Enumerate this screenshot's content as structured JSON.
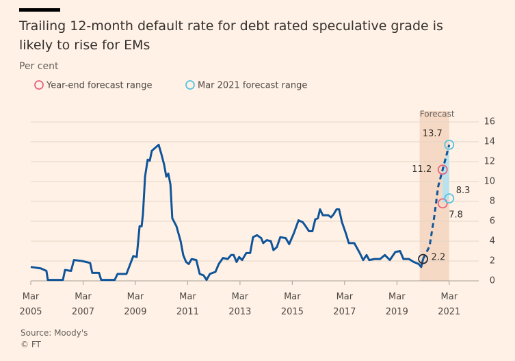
{
  "chart_data": {
    "type": "line",
    "title": "Trailing 12-month default rate for debt rated speculative grade is likely to rise for EMs",
    "subtitle": "Per cent",
    "source": "Source: Moody's",
    "copyright": "© FT",
    "color": "#0f5499",
    "x": [
      2005.17,
      2005.56,
      2005.77,
      2005.82,
      2006.4,
      2006.48,
      2006.71,
      2006.82,
      2007.13,
      2007.44,
      2007.52,
      2007.78,
      2007.86,
      2008.38,
      2008.49,
      2008.83,
      2009.09,
      2009.22,
      2009.33,
      2009.41,
      2009.46,
      2009.54,
      2009.64,
      2009.72,
      2009.8,
      2009.93,
      2010.06,
      2010.16,
      2010.27,
      2010.35,
      2010.43,
      2010.51,
      2010.58,
      2010.74,
      2010.9,
      2011.0,
      2011.11,
      2011.21,
      2011.32,
      2011.5,
      2011.63,
      2011.78,
      2011.89,
      2012.02,
      2012.23,
      2012.36,
      2012.52,
      2012.7,
      2012.83,
      2012.93,
      2013.04,
      2013.14,
      2013.25,
      2013.41,
      2013.56,
      2013.67,
      2013.82,
      2013.98,
      2014.06,
      2014.19,
      2014.35,
      2014.45,
      2014.58,
      2014.71,
      2014.92,
      2015.05,
      2015.23,
      2015.41,
      2015.57,
      2015.68,
      2015.81,
      2015.94,
      2016.05,
      2016.15,
      2016.23,
      2016.34,
      2016.55,
      2016.65,
      2016.75,
      2016.86,
      2016.96,
      2017.07,
      2017.23,
      2017.33,
      2017.54,
      2017.75,
      2017.88,
      2018.01,
      2018.11,
      2018.32,
      2018.53,
      2018.71,
      2018.9,
      2019.11,
      2019.29,
      2019.42,
      2019.63,
      2019.81,
      2020.0,
      2020.1,
      2020.17
    ],
    "values": [
      1.4,
      1.25,
      1.0,
      0.1,
      0.1,
      1.1,
      1.0,
      2.1,
      2.0,
      1.8,
      0.8,
      0.8,
      0.1,
      0.1,
      0.7,
      0.7,
      2.5,
      2.4,
      5.5,
      5.5,
      6.7,
      10.5,
      12.2,
      12.1,
      13.1,
      13.4,
      13.7,
      12.8,
      11.7,
      10.5,
      10.8,
      9.7,
      6.3,
      5.5,
      4.0,
      2.6,
      1.9,
      1.7,
      2.2,
      2.1,
      0.7,
      0.55,
      0.1,
      0.7,
      0.9,
      1.7,
      2.3,
      2.2,
      2.6,
      2.6,
      1.9,
      2.4,
      2.1,
      2.8,
      2.8,
      4.4,
      4.6,
      4.3,
      3.8,
      4.1,
      4.0,
      3.1,
      3.4,
      4.4,
      4.3,
      3.7,
      4.8,
      6.1,
      5.9,
      5.5,
      5.0,
      5.0,
      6.2,
      6.3,
      7.2,
      6.6,
      6.6,
      6.4,
      6.7,
      7.2,
      7.2,
      5.9,
      4.7,
      3.8,
      3.8,
      2.8,
      2.1,
      2.6,
      2.1,
      2.2,
      2.2,
      2.6,
      2.1,
      2.9,
      3.0,
      2.2,
      2.2,
      1.9,
      1.7,
      1.4,
      2.2
    ],
    "forecast": {
      "label": "Forecast",
      "band": [
        2020.04,
        2021.17
      ],
      "band_color": "#f5d9c4",
      "color": "#0f5499",
      "x": [
        2020.17,
        2020.42,
        2020.6,
        2020.75,
        2020.92,
        2021.17
      ],
      "values": [
        2.2,
        3.5,
        6.5,
        9.5,
        11.2,
        13.7
      ]
    },
    "range_fill": "#b8e3ee",
    "series": [
      {
        "name": "Year-end forecast range",
        "color": "#e8617c",
        "x": [
          2020.92,
          2020.92
        ],
        "values": [
          7.8,
          11.2
        ]
      },
      {
        "name": "Mar 2021 forecast range",
        "color": "#52c3e4",
        "x": [
          2021.17,
          2021.17
        ],
        "values": [
          8.3,
          13.7
        ]
      }
    ],
    "xlim": [
      2005.17,
      2022.3
    ],
    "xticks": [
      {
        "value": 2005.17,
        "label": "Mar 2005"
      },
      {
        "value": 2007.17,
        "label": "Mar 2007"
      },
      {
        "value": 2009.17,
        "label": "Mar 2009"
      },
      {
        "value": 2011.17,
        "label": "Mar 2011"
      },
      {
        "value": 2013.17,
        "label": "Mar 2013"
      },
      {
        "value": 2015.17,
        "label": "Mar 2015"
      },
      {
        "value": 2017.17,
        "label": "Mar 2017"
      },
      {
        "value": 2019.17,
        "label": "Mar 2019"
      },
      {
        "value": 2021.17,
        "label": "Mar 2021"
      }
    ],
    "ylim": [
      0,
      16
    ],
    "yticks": [
      0,
      2,
      4,
      6,
      8,
      10,
      12,
      14,
      16
    ],
    "grid": true
  }
}
